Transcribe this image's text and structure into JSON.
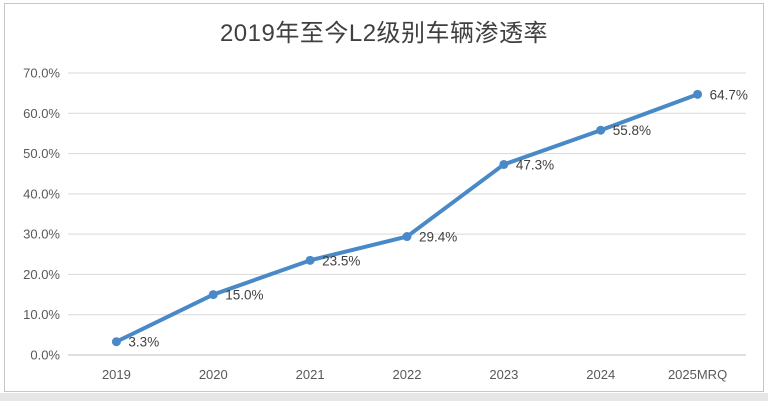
{
  "chart": {
    "title": "2019年至今L2级别车辆渗透率"
  },
  "colors": {
    "line": "#4a89c8",
    "marker": "#4a89c8",
    "grid": "#d9d9d9",
    "axis": "#bfbfbf",
    "tick_text": "#595959",
    "label_text": "#404040",
    "title_text": "#404040",
    "frame_border": "#c6c6c6",
    "bottom_strip": "#e7e6e4",
    "background": "#ffffff"
  },
  "chart_data": {
    "type": "line",
    "title": "2019年至今L2级别车辆渗透率",
    "categories": [
      "2019",
      "2020",
      "2021",
      "2022",
      "2023",
      "2024",
      "2025MRQ"
    ],
    "values": [
      3.3,
      15.0,
      23.5,
      29.4,
      47.3,
      55.8,
      64.7
    ],
    "data_labels": [
      "3.3%",
      "15.0%",
      "23.5%",
      "29.4%",
      "47.3%",
      "55.8%",
      "64.7%"
    ],
    "xlabel": "",
    "ylabel": "",
    "ylim": [
      0,
      70
    ],
    "ytick_step": 10,
    "ytick_labels": [
      "0.0%",
      "10.0%",
      "20.0%",
      "30.0%",
      "40.0%",
      "50.0%",
      "60.0%",
      "70.0%"
    ],
    "grid": true,
    "legend": "none",
    "marker": "circle"
  }
}
